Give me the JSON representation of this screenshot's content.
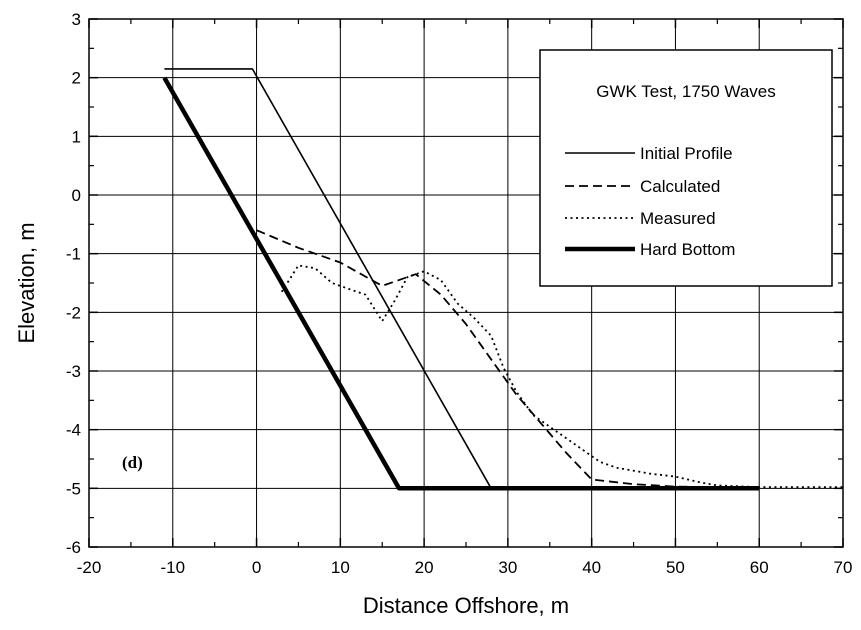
{
  "chart_data": {
    "type": "line",
    "xlabel": "Distance Offshore, m",
    "ylabel": "Elevation, m",
    "xlim": [
      -20,
      70
    ],
    "ylim": [
      -6,
      3
    ],
    "xticks": [
      -20,
      -10,
      0,
      10,
      20,
      30,
      40,
      50,
      60,
      70
    ],
    "yticks": [
      -6,
      -5,
      -4,
      -3,
      -2,
      -1,
      0,
      1,
      2,
      3
    ],
    "grid": true,
    "legend_placement": "top-right",
    "legend_title": "GWK Test, 1750 Waves",
    "panel_label": "(d)",
    "series": [
      {
        "name": "Initial Profile",
        "style": "solid",
        "x": [
          -11,
          -0.5,
          28,
          60
        ],
        "y": [
          2.15,
          2.15,
          -5,
          -5
        ]
      },
      {
        "name": "Calculated",
        "style": "dashed",
        "x": [
          0,
          5,
          10,
          15,
          19,
          22,
          25,
          28,
          31,
          34,
          37,
          40,
          45,
          50,
          55,
          60
        ],
        "y": [
          -0.6,
          -0.9,
          -1.15,
          -1.55,
          -1.35,
          -1.7,
          -2.2,
          -2.8,
          -3.4,
          -3.9,
          -4.4,
          -4.85,
          -4.93,
          -4.97,
          -4.98,
          -5
        ]
      },
      {
        "name": "Measured",
        "style": "dotted",
        "x": [
          3,
          5,
          7,
          9,
          11,
          13,
          15,
          16.5,
          18,
          20,
          22,
          24,
          26,
          28,
          29.5,
          31,
          33,
          36,
          39,
          41,
          43,
          45,
          47,
          50,
          53,
          55,
          60,
          65,
          70
        ],
        "y": [
          -1.65,
          -1.2,
          -1.25,
          -1.5,
          -1.6,
          -1.7,
          -2.15,
          -1.8,
          -1.4,
          -1.3,
          -1.45,
          -1.85,
          -2.1,
          -2.4,
          -2.95,
          -3.35,
          -3.75,
          -4.05,
          -4.35,
          -4.55,
          -4.65,
          -4.7,
          -4.75,
          -4.8,
          -4.9,
          -4.95,
          -4.98,
          -4.98,
          -4.98
        ]
      },
      {
        "name": "Hard Bottom",
        "style": "thick",
        "x": [
          -11,
          17,
          60
        ],
        "y": [
          2,
          -5,
          -5
        ]
      }
    ]
  }
}
